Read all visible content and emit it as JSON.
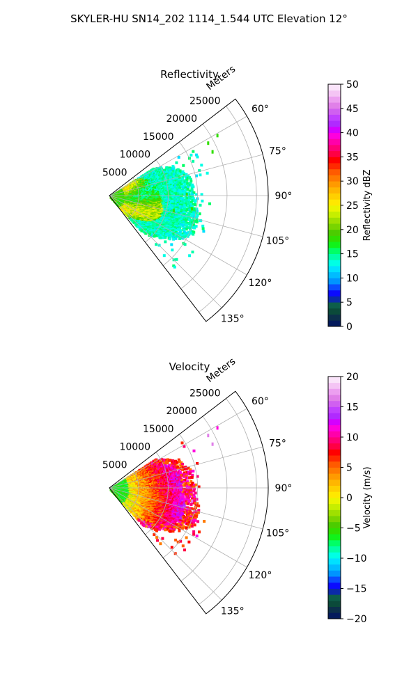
{
  "figure": {
    "suptitle": "SKYLER-HU  SN14_202  1114_1.544 UTC Elevation 12°"
  },
  "chart_data": [
    {
      "type": "heatmap",
      "projection": "polar-sector",
      "title": "Reflectivity",
      "range_axis_label": "Meters",
      "range_ticks": [
        5000,
        10000,
        15000,
        20000,
        25000
      ],
      "range_tick_labels": [
        "5000",
        "10000",
        "15000",
        "20000",
        "25000"
      ],
      "rmax": 27000,
      "azimuth_range_deg": [
        52.5,
        142.5
      ],
      "azimuth_ticks_deg": [
        60,
        75,
        90,
        105,
        120,
        135
      ],
      "azimuth_tick_labels": [
        "60°",
        "75°",
        "90°",
        "105°",
        "120°",
        "135°"
      ],
      "grid": true,
      "colorbar": {
        "label": "Reflectivity dBZ",
        "vmin": 0,
        "vmax": 50,
        "ticks": [
          0,
          5,
          10,
          15,
          20,
          25,
          30,
          35,
          40,
          45,
          50
        ],
        "tick_labels": [
          "0",
          "5",
          "10",
          "15",
          "20",
          "25",
          "30",
          "35",
          "40",
          "45",
          "50"
        ],
        "colors": [
          "#041a5c",
          "#0c2f4a",
          "#0b4a3a",
          "#0d5e4a",
          "#0b2aa8",
          "#0b0bff",
          "#0a4cff",
          "#0094ff",
          "#00bcff",
          "#00e1ff",
          "#00ffe5",
          "#00ffa8",
          "#00ff66",
          "#11f21a",
          "#30de00",
          "#4ccc00",
          "#79d400",
          "#9fe000",
          "#c6ee00",
          "#eaf500",
          "#ffe800",
          "#ffd000",
          "#ffb600",
          "#ff9a00",
          "#ff7a00",
          "#ff5a00",
          "#ff2a00",
          "#ff0000",
          "#ff0044",
          "#ff0077",
          "#ff00aa",
          "#ff00dd",
          "#d400ff",
          "#b02aff",
          "#c040ff",
          "#d060f0",
          "#e080e8",
          "#ec9ff0",
          "#f4c4f4",
          "#fae4fa"
        ]
      },
      "data_summary": {
        "dominant_values": [
          12,
          18,
          22,
          26
        ],
        "range_extent_m": [
          0,
          17000
        ]
      }
    },
    {
      "type": "heatmap",
      "projection": "polar-sector",
      "title": "Velocity",
      "range_axis_label": "Meters",
      "range_ticks": [
        5000,
        10000,
        15000,
        20000,
        25000
      ],
      "range_tick_labels": [
        "5000",
        "10000",
        "15000",
        "20000",
        "25000"
      ],
      "rmax": 27000,
      "azimuth_range_deg": [
        52.5,
        142.5
      ],
      "azimuth_ticks_deg": [
        60,
        75,
        90,
        105,
        120,
        135
      ],
      "azimuth_tick_labels": [
        "60°",
        "75°",
        "90°",
        "105°",
        "120°",
        "135°"
      ],
      "grid": true,
      "colorbar": {
        "label": "Velocity (m/s)",
        "vmin": -20,
        "vmax": 20,
        "ticks": [
          -20,
          -15,
          -10,
          -5,
          0,
          5,
          10,
          15,
          20
        ],
        "tick_labels": [
          "−20",
          "−15",
          "−10",
          "−5",
          "0",
          "5",
          "10",
          "15",
          "20"
        ],
        "colors": [
          "#041a5c",
          "#0c2f4a",
          "#0b4a3a",
          "#0d5e4a",
          "#0b2aa8",
          "#0b0bff",
          "#0a4cff",
          "#0094ff",
          "#00bcff",
          "#00e1ff",
          "#00ffe5",
          "#00ffa8",
          "#00ff66",
          "#11f21a",
          "#30de00",
          "#4ccc00",
          "#79d400",
          "#9fe000",
          "#c6ee00",
          "#eaf500",
          "#ffe800",
          "#ffd000",
          "#ffb600",
          "#ff9a00",
          "#ff7a00",
          "#ff5a00",
          "#ff2a00",
          "#ff0000",
          "#ff0044",
          "#ff0077",
          "#ff00aa",
          "#ff00dd",
          "#d400ff",
          "#b02aff",
          "#c040ff",
          "#d060f0",
          "#e080e8",
          "#ec9ff0",
          "#f4c4f4",
          "#fae4fa"
        ]
      },
      "data_summary": {
        "dominant_values": [
          -4,
          2,
          6,
          10,
          12
        ],
        "range_extent_m": [
          0,
          17000
        ]
      }
    }
  ]
}
